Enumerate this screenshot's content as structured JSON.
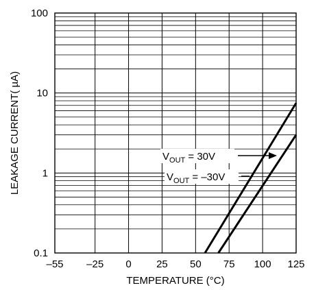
{
  "chart_data": {
    "type": "line",
    "xlabel": "TEMPERATURE (°C)",
    "ylabel": "LEAKAGE CURRENT( µA)",
    "x_scale": "linear",
    "y_scale": "log",
    "xlim": [
      -55,
      125
    ],
    "ylim": [
      0.1,
      100
    ],
    "x_ticks": [
      -55,
      -25,
      0,
      25,
      50,
      75,
      100,
      125
    ],
    "x_tick_labels": [
      "–55",
      "–25",
      "0",
      "25",
      "50",
      "75",
      "100",
      "125"
    ],
    "y_ticks": [
      0.1,
      1,
      10,
      100
    ],
    "y_tick_labels": [
      "0.1",
      "1",
      "10",
      "100"
    ],
    "grid": true,
    "series": [
      {
        "name": "VOUT = 30V",
        "x": [
          57,
          125
        ],
        "y": [
          0.1,
          7.5
        ]
      },
      {
        "name": "VOUT = –30V",
        "x": [
          67,
          125
        ],
        "y": [
          0.1,
          3.0
        ]
      }
    ],
    "annotations": [
      {
        "prefix": "V",
        "sub": "OUT",
        "suffix": " = 30V",
        "series_index": 0
      },
      {
        "prefix": "V",
        "sub": "OUT",
        "suffix": " = –30V",
        "series_index": 1
      }
    ]
  }
}
